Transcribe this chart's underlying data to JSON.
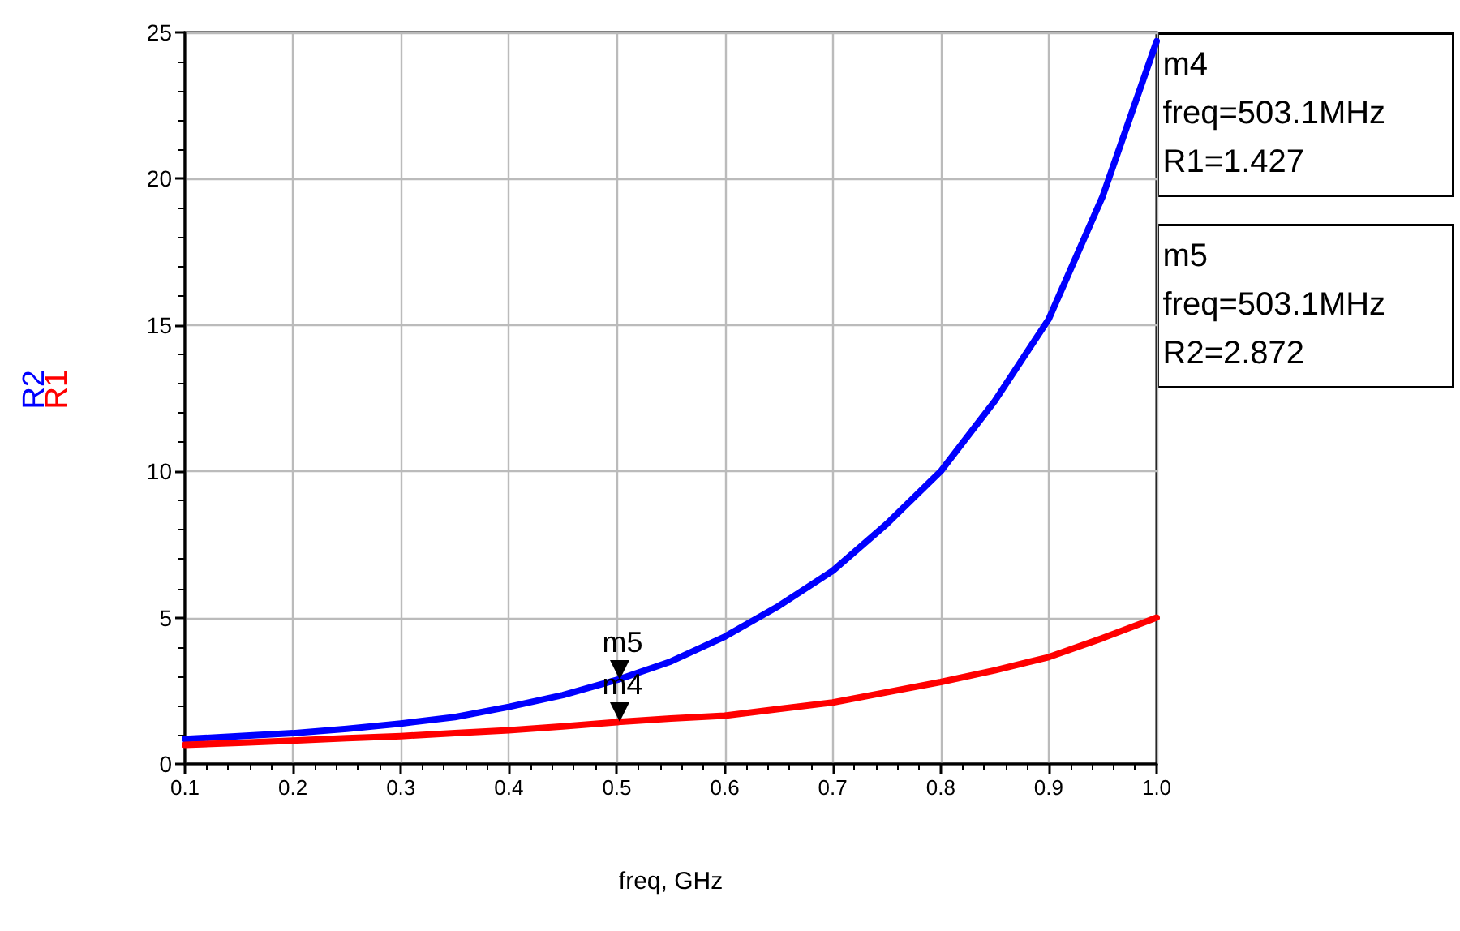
{
  "chart_data": {
    "type": "line",
    "xlabel": "freq, GHz",
    "x": [
      0.1,
      0.15,
      0.2,
      0.25,
      0.3,
      0.35,
      0.4,
      0.45,
      0.5,
      0.55,
      0.6,
      0.65,
      0.7,
      0.75,
      0.8,
      0.85,
      0.9,
      0.95,
      1.0
    ],
    "series": [
      {
        "name": "R2",
        "color": "#0000ff",
        "values": [
          0.85,
          0.95,
          1.05,
          1.2,
          1.38,
          1.6,
          1.95,
          2.35,
          2.87,
          3.5,
          4.35,
          5.4,
          6.6,
          8.2,
          10.0,
          12.4,
          15.2,
          19.4,
          24.7
        ]
      },
      {
        "name": "R1",
        "color": "#ff0000",
        "values": [
          0.65,
          0.72,
          0.8,
          0.88,
          0.95,
          1.05,
          1.15,
          1.28,
          1.43,
          1.55,
          1.65,
          1.88,
          2.1,
          2.45,
          2.8,
          3.2,
          3.65,
          4.3,
          5.0
        ]
      }
    ],
    "xlim": [
      0.1,
      1.0
    ],
    "ylim": [
      0,
      25
    ],
    "xticks": [
      0.1,
      0.2,
      0.3,
      0.4,
      0.5,
      0.6,
      0.7,
      0.8,
      0.9,
      {
        "value": 1.0,
        "label": "1.0"
      }
    ],
    "yticks": [
      0,
      5,
      10,
      15,
      20,
      25
    ],
    "grid": true,
    "marker": "none",
    "line_style": "solid",
    "annotations": [
      {
        "text": "m4",
        "x": 0.5031,
        "y": 1.427
      },
      {
        "text": "m5",
        "x": 0.5031,
        "y": 2.872
      },
      "m4\nfreq=503.1MHz\nR1=1.427",
      "m5\nfreq=503.1MHz\nR2=2.872"
    ]
  }
}
